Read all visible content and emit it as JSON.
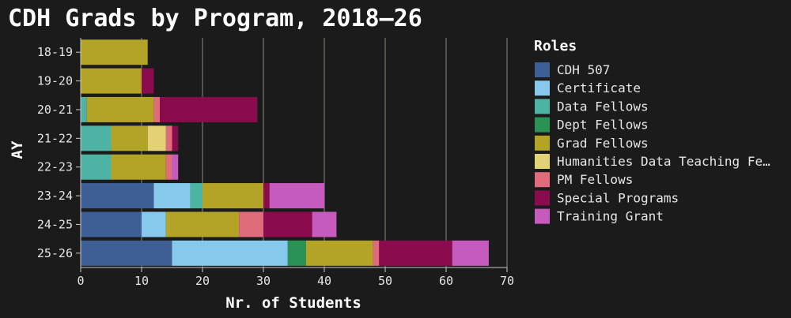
{
  "chart_data": {
    "type": "bar",
    "orientation": "horizontal",
    "stacked": true,
    "title": "CDH Grads by Program, 2018–26",
    "xlabel": "Nr. of Students",
    "ylabel": "AY",
    "xlim": [
      0,
      70
    ],
    "xticks": [
      0,
      10,
      20,
      30,
      40,
      50,
      60,
      70
    ],
    "grid": "vertical",
    "legend_title": "Roles",
    "legend_position": "right",
    "categories": [
      "18-19",
      "19-20",
      "20-21",
      "21-22",
      "22-23",
      "23-24",
      "24-25",
      "25-26"
    ],
    "series": [
      {
        "name": "CDH 507",
        "color": "#3e5f95",
        "values": [
          0,
          0,
          0,
          0,
          0,
          12,
          10,
          15
        ]
      },
      {
        "name": "Certificate",
        "color": "#86c9ec",
        "values": [
          0,
          0,
          0,
          0,
          0,
          6,
          4,
          19
        ]
      },
      {
        "name": "Data Fellows",
        "color": "#4db3a2",
        "values": [
          0,
          0,
          1,
          5,
          5,
          2,
          0,
          0
        ]
      },
      {
        "name": "Dept Fellows",
        "color": "#2b9255",
        "values": [
          0,
          0,
          0,
          0,
          0,
          0,
          0,
          3
        ]
      },
      {
        "name": "Grad Fellows",
        "color": "#b3a428",
        "values": [
          11,
          10,
          11,
          6,
          9,
          10,
          12,
          11
        ]
      },
      {
        "name": "Humanities Data Teaching Fe…",
        "color": "#e3d176",
        "values": [
          0,
          0,
          0,
          3,
          0,
          0,
          0,
          0
        ]
      },
      {
        "name": "PM Fellows",
        "color": "#df6b7b",
        "values": [
          0,
          0,
          1,
          1,
          1,
          0,
          4,
          1
        ]
      },
      {
        "name": "Special Programs",
        "color": "#8a0c4e",
        "values": [
          0,
          2,
          16,
          1,
          0,
          1,
          8,
          12
        ]
      },
      {
        "name": "Training Grant",
        "color": "#c75bbd",
        "values": [
          0,
          0,
          0,
          0,
          1,
          9,
          4,
          6
        ]
      }
    ]
  }
}
